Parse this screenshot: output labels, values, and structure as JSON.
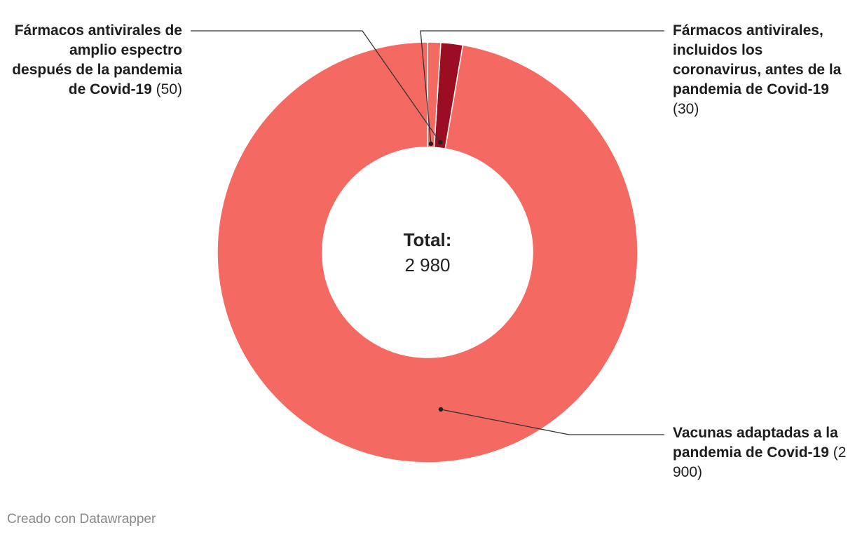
{
  "chart_data": {
    "type": "pie",
    "variant": "donut",
    "slices": [
      {
        "label": "Vacunas adaptadas a la pandemia de Covid-19",
        "value": 2900,
        "value_text": "(2 900)",
        "color": "#f46a63"
      },
      {
        "label": "Fármacos antivirales de amplio espectro después de la pandemia de Covid-19",
        "value": 50,
        "value_text": "(50)",
        "color": "#9b0d20"
      },
      {
        "label": "Fármacos antivirales, incluidos los coronavirus, antes de la pandemia de Covid-19",
        "value": 30,
        "value_text": "(30)",
        "color": "#f46a63"
      }
    ],
    "center": {
      "title": "Total:",
      "value": "2 980"
    },
    "footer": "Creado con Datawrapper"
  }
}
